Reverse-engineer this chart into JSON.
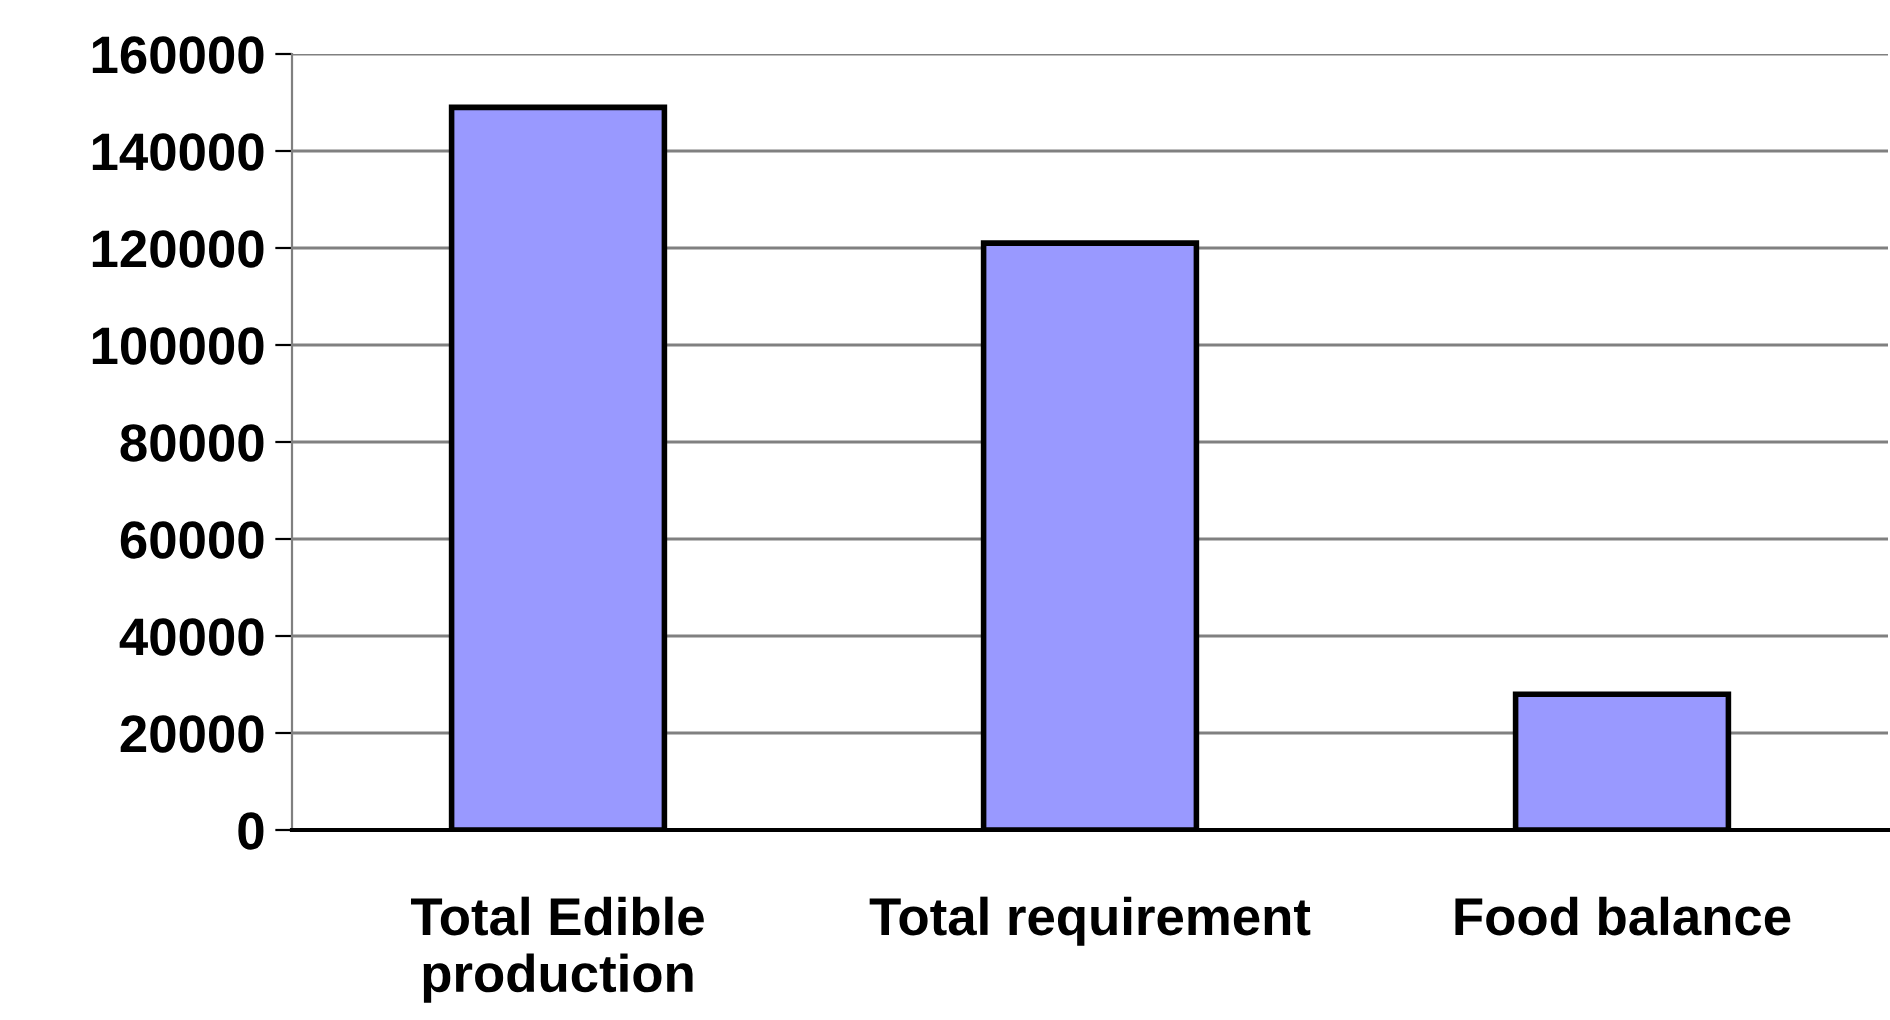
{
  "chart_data": {
    "type": "bar",
    "categories": [
      "Total Edible\nproduction",
      "Total requirement",
      "Food balance"
    ],
    "values": [
      149000,
      121000,
      28000
    ],
    "color": "#9999ff",
    "ylim": [
      0,
      160000
    ],
    "yticks": [
      0,
      20000,
      40000,
      60000,
      80000,
      100000,
      120000,
      140000,
      160000
    ],
    "grid": "y"
  }
}
